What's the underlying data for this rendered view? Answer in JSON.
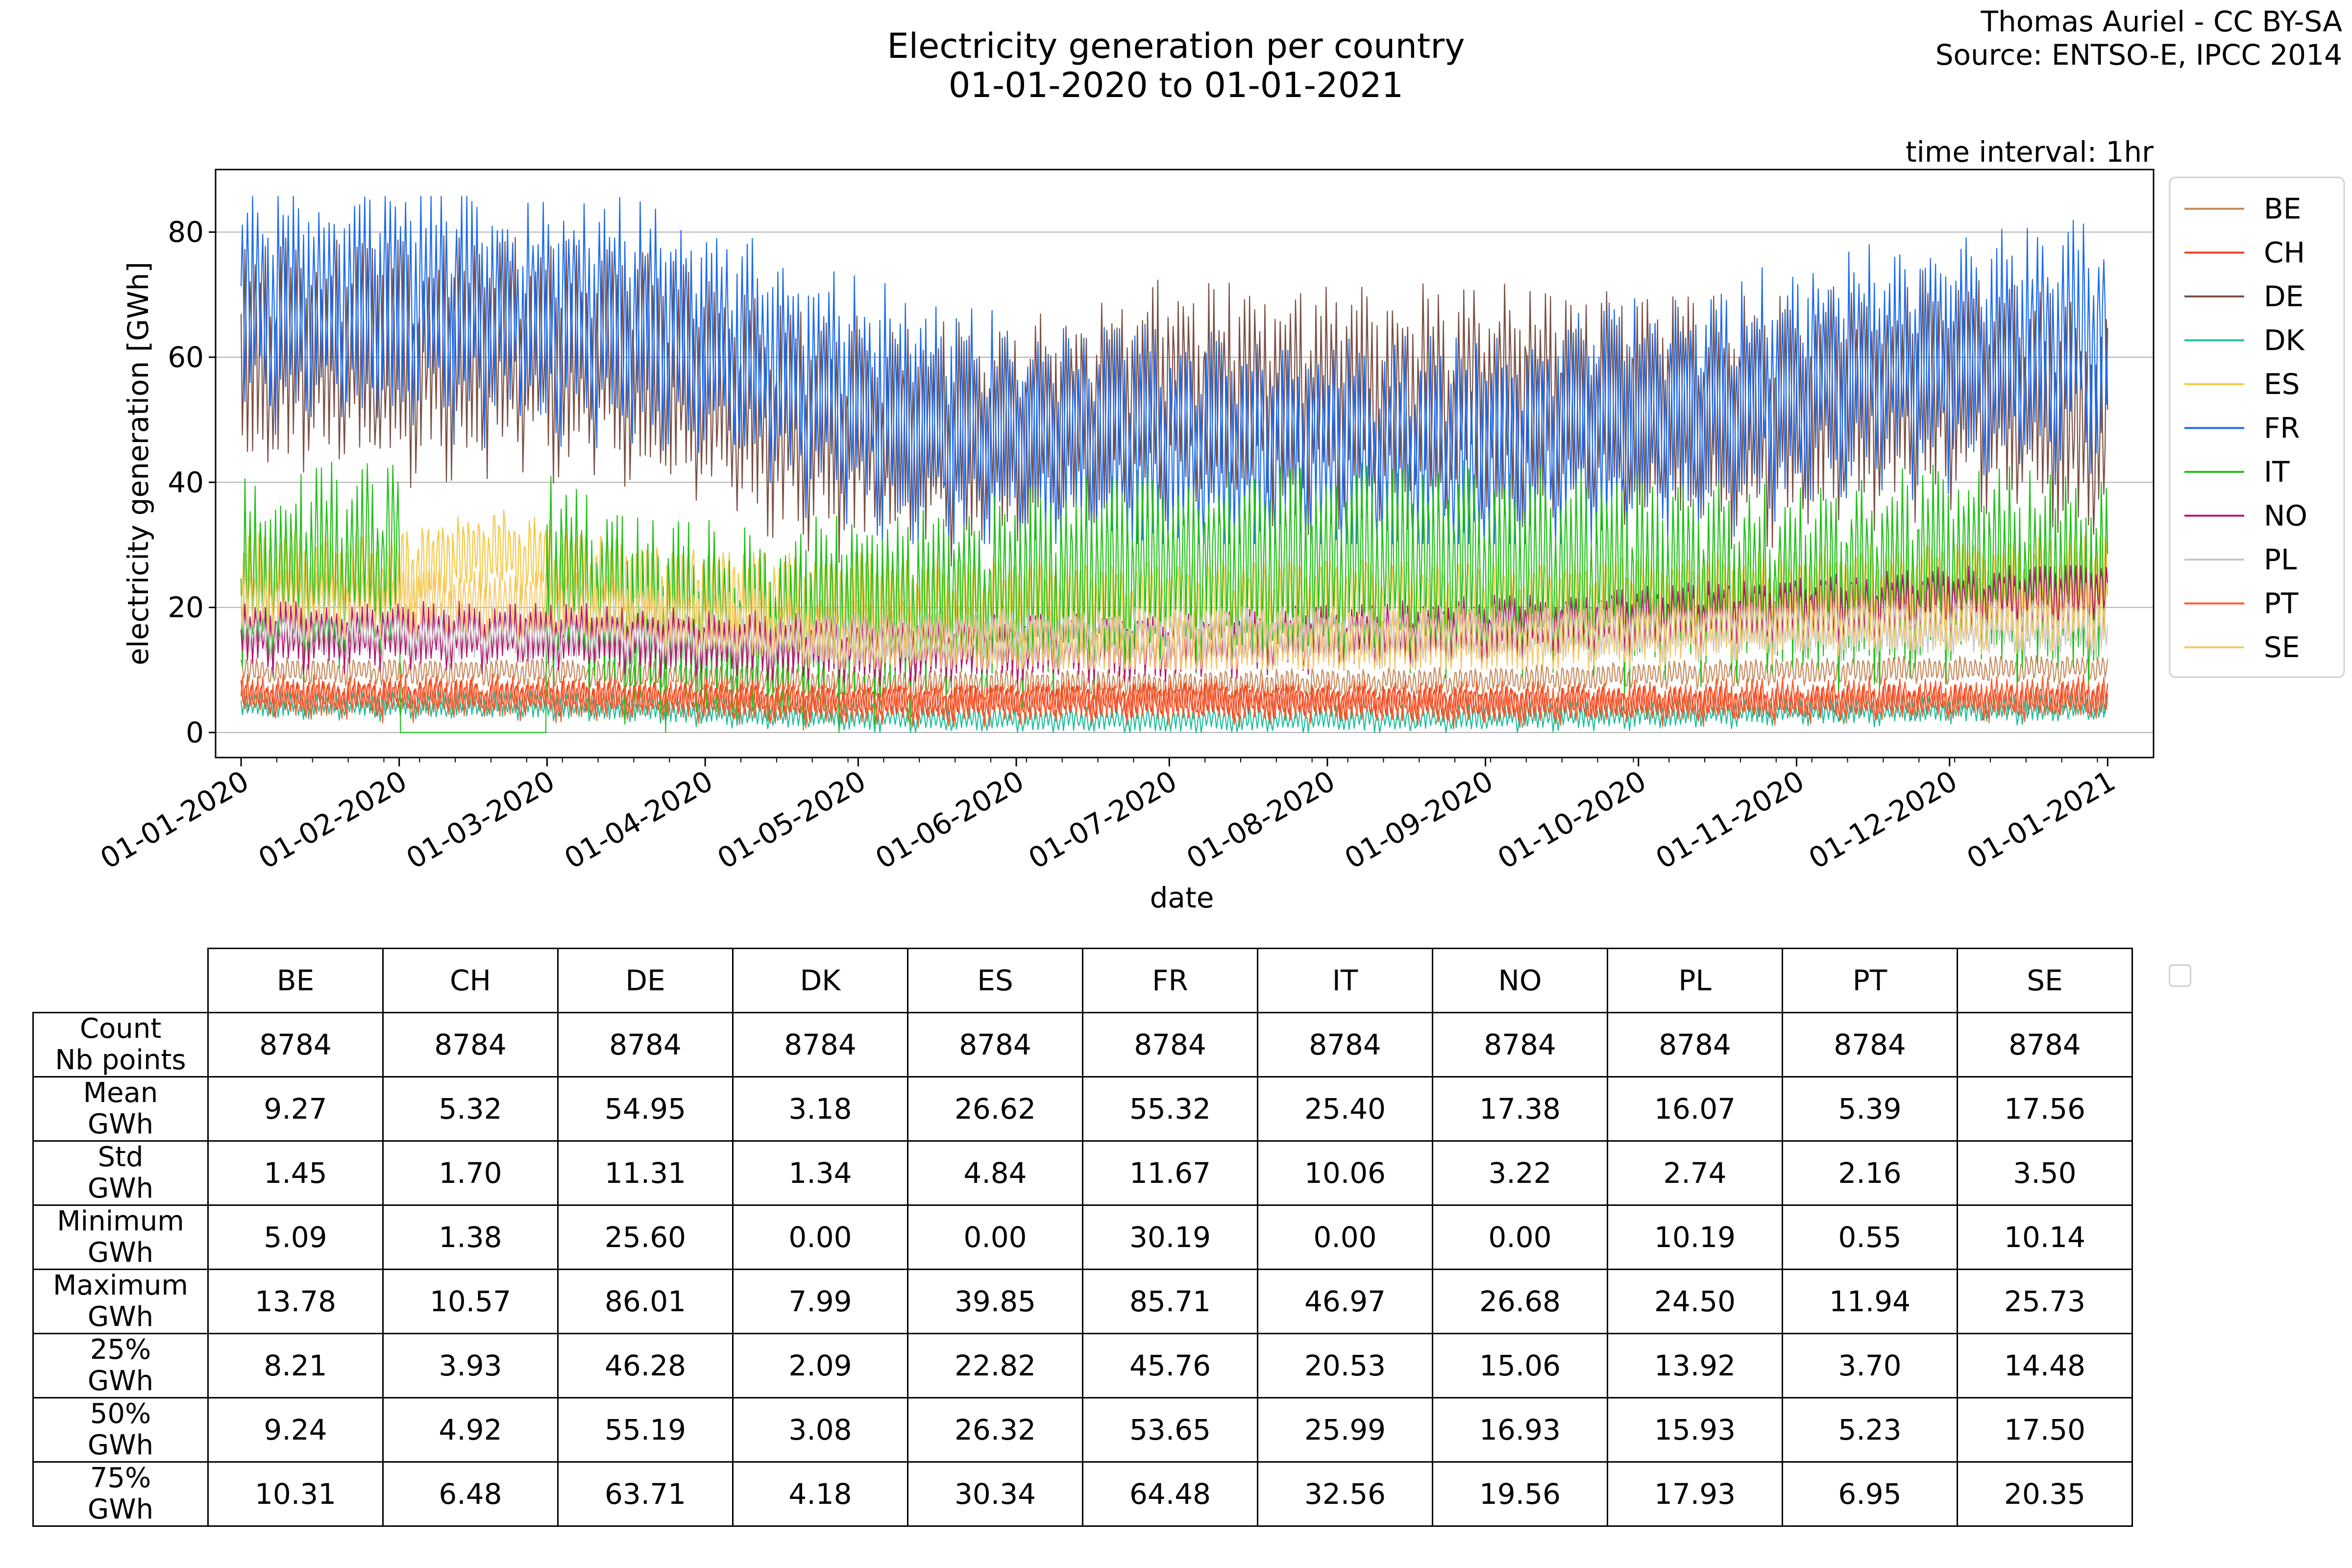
{
  "header": {
    "title_line1": "Electricity generation per country",
    "title_line2": "01-01-2020 to 01-01-2021",
    "credit_line1": "Thomas Auriel - CC BY-SA",
    "credit_line2": "Source: ENTSO-E, IPCC 2014",
    "interval_note": "time interval: 1hr"
  },
  "chart_data": {
    "type": "line",
    "title": "Electricity generation per country\n01-01-2020 to 01-01-2021",
    "xlabel": "date",
    "ylabel": "electricity generation [GWh]",
    "xlim": [
      -5,
      375
    ],
    "ylim": [
      -4,
      90
    ],
    "grid": "horizontal",
    "legend_position": "right",
    "yticks": [
      0,
      20,
      40,
      60,
      80
    ],
    "x_tick_labels": [
      {
        "label": "01-01-2020",
        "day": 0
      },
      {
        "label": "01-02-2020",
        "day": 31
      },
      {
        "label": "01-03-2020",
        "day": 60
      },
      {
        "label": "01-04-2020",
        "day": 91
      },
      {
        "label": "01-05-2020",
        "day": 121
      },
      {
        "label": "01-06-2020",
        "day": 152
      },
      {
        "label": "01-07-2020",
        "day": 182
      },
      {
        "label": "01-08-2020",
        "day": 213
      },
      {
        "label": "01-09-2020",
        "day": 244
      },
      {
        "label": "01-10-2020",
        "day": 274
      },
      {
        "label": "01-11-2020",
        "day": 305
      },
      {
        "label": "01-12-2020",
        "day": 335
      },
      {
        "label": "01-01-2021",
        "day": 366
      }
    ],
    "x_unit": "days since 01-01-2020 (hourly samples)",
    "series": [
      {
        "name": "BE",
        "color": "#c88a5c",
        "mean": 9.27,
        "std": 1.45,
        "min": 5.09,
        "max": 13.78
      },
      {
        "name": "CH",
        "color": "#e8401c",
        "mean": 5.32,
        "std": 1.7,
        "min": 1.38,
        "max": 10.57
      },
      {
        "name": "DE",
        "color": "#7a4f43",
        "mean": 54.95,
        "std": 11.31,
        "min": 25.6,
        "max": 86.01
      },
      {
        "name": "DK",
        "color": "#1dbf9d",
        "mean": 3.18,
        "std": 1.34,
        "min": 0.0,
        "max": 7.99
      },
      {
        "name": "ES",
        "color": "#f5c842",
        "mean": 26.62,
        "std": 4.84,
        "min": 0.0,
        "max": 39.85
      },
      {
        "name": "FR",
        "color": "#1c6bf0",
        "mean": 55.32,
        "std": 11.67,
        "min": 30.19,
        "max": 85.71
      },
      {
        "name": "IT",
        "color": "#22c11a",
        "mean": 25.4,
        "std": 10.06,
        "min": 0.0,
        "max": 46.97
      },
      {
        "name": "NO",
        "color": "#b5166f",
        "mean": 17.38,
        "std": 3.22,
        "min": 0.0,
        "max": 26.68
      },
      {
        "name": "PL",
        "color": "#c8c8c8",
        "mean": 16.07,
        "std": 2.74,
        "min": 10.19,
        "max": 24.5
      },
      {
        "name": "PT",
        "color": "#ff5a2a",
        "mean": 5.39,
        "std": 2.16,
        "min": 0.55,
        "max": 11.94
      },
      {
        "name": "SE",
        "color": "#f7c86a",
        "mean": 17.56,
        "std": 3.5,
        "min": 10.14,
        "max": 25.73
      }
    ],
    "trend_points": {
      "BE": [
        [
          0,
          10
        ],
        [
          60,
          10
        ],
        [
          120,
          8
        ],
        [
          180,
          8
        ],
        [
          240,
          8.5
        ],
        [
          300,
          10
        ],
        [
          366,
          10.5
        ]
      ],
      "CH": [
        [
          0,
          6
        ],
        [
          60,
          6
        ],
        [
          120,
          5
        ],
        [
          180,
          5.5
        ],
        [
          240,
          5
        ],
        [
          300,
          5
        ],
        [
          366,
          5.5
        ]
      ],
      "DE": [
        [
          0,
          62
        ],
        [
          60,
          62
        ],
        [
          80,
          60
        ],
        [
          110,
          50
        ],
        [
          140,
          48
        ],
        [
          180,
          55
        ],
        [
          240,
          55
        ],
        [
          300,
          52
        ],
        [
          340,
          58
        ],
        [
          366,
          50
        ]
      ],
      "DK": [
        [
          0,
          4.5
        ],
        [
          60,
          4.5
        ],
        [
          120,
          2.5
        ],
        [
          180,
          2.2
        ],
        [
          240,
          2.5
        ],
        [
          300,
          3.5
        ],
        [
          366,
          4
        ]
      ],
      "ES": [
        [
          0,
          26
        ],
        [
          30,
          26
        ],
        [
          50,
          30
        ],
        [
          80,
          24
        ],
        [
          150,
          22
        ],
        [
          200,
          22
        ],
        [
          260,
          22
        ],
        [
          320,
          24
        ],
        [
          366,
          26
        ]
      ],
      "FR": [
        [
          0,
          70
        ],
        [
          40,
          70
        ],
        [
          80,
          67
        ],
        [
          110,
          58
        ],
        [
          140,
          50
        ],
        [
          180,
          47
        ],
        [
          240,
          45
        ],
        [
          280,
          53
        ],
        [
          320,
          60
        ],
        [
          350,
          63
        ],
        [
          366,
          65
        ]
      ],
      "IT": [
        [
          0,
          25
        ],
        [
          30,
          30
        ],
        [
          60,
          28
        ],
        [
          75,
          20
        ],
        [
          100,
          18
        ],
        [
          140,
          22
        ],
        [
          180,
          28
        ],
        [
          240,
          28
        ],
        [
          300,
          25
        ],
        [
          340,
          28
        ],
        [
          366,
          25
        ]
      ],
      "NO": [
        [
          0,
          16
        ],
        [
          60,
          16
        ],
        [
          120,
          14
        ],
        [
          180,
          14
        ],
        [
          240,
          17
        ],
        [
          300,
          20
        ],
        [
          366,
          23
        ]
      ],
      "PL": [
        [
          0,
          17
        ],
        [
          60,
          16
        ],
        [
          120,
          15
        ],
        [
          180,
          16
        ],
        [
          240,
          16
        ],
        [
          300,
          17
        ],
        [
          366,
          17
        ]
      ],
      "PT": [
        [
          0,
          6
        ],
        [
          60,
          6
        ],
        [
          120,
          5
        ],
        [
          180,
          5.5
        ],
        [
          240,
          5
        ],
        [
          300,
          5.5
        ],
        [
          366,
          6
        ]
      ],
      "SE": [
        [
          0,
          22
        ],
        [
          60,
          21
        ],
        [
          120,
          16
        ],
        [
          180,
          14
        ],
        [
          240,
          15
        ],
        [
          300,
          18
        ],
        [
          366,
          20
        ]
      ]
    }
  },
  "table": {
    "columns": [
      "BE",
      "CH",
      "DE",
      "DK",
      "ES",
      "FR",
      "IT",
      "NO",
      "PL",
      "PT",
      "SE"
    ],
    "rows": [
      {
        "label1": "Count",
        "label2": "Nb points",
        "values": [
          "8784",
          "8784",
          "8784",
          "8784",
          "8784",
          "8784",
          "8784",
          "8784",
          "8784",
          "8784",
          "8784"
        ]
      },
      {
        "label1": "Mean",
        "label2": "GWh",
        "values": [
          "9.27",
          "5.32",
          "54.95",
          "3.18",
          "26.62",
          "55.32",
          "25.40",
          "17.38",
          "16.07",
          "5.39",
          "17.56"
        ]
      },
      {
        "label1": "Std",
        "label2": "GWh",
        "values": [
          "1.45",
          "1.70",
          "11.31",
          "1.34",
          "4.84",
          "11.67",
          "10.06",
          "3.22",
          "2.74",
          "2.16",
          "3.50"
        ]
      },
      {
        "label1": "Minimum",
        "label2": "GWh",
        "values": [
          "5.09",
          "1.38",
          "25.60",
          "0.00",
          "0.00",
          "30.19",
          "0.00",
          "0.00",
          "10.19",
          "0.55",
          "10.14"
        ]
      },
      {
        "label1": "Maximum",
        "label2": "GWh",
        "values": [
          "13.78",
          "10.57",
          "86.01",
          "7.99",
          "39.85",
          "85.71",
          "46.97",
          "26.68",
          "24.50",
          "11.94",
          "25.73"
        ]
      },
      {
        "label1": "25%",
        "label2": "GWh",
        "values": [
          "8.21",
          "3.93",
          "46.28",
          "2.09",
          "22.82",
          "45.76",
          "20.53",
          "15.06",
          "13.92",
          "3.70",
          "14.48"
        ]
      },
      {
        "label1": "50%",
        "label2": "GWh",
        "values": [
          "9.24",
          "4.92",
          "55.19",
          "3.08",
          "26.32",
          "53.65",
          "25.99",
          "16.93",
          "15.93",
          "5.23",
          "17.50"
        ]
      },
      {
        "label1": "75%",
        "label2": "GWh",
        "values": [
          "10.31",
          "6.48",
          "63.71",
          "4.18",
          "30.34",
          "64.48",
          "32.56",
          "19.56",
          "17.93",
          "6.95",
          "20.35"
        ]
      }
    ]
  }
}
